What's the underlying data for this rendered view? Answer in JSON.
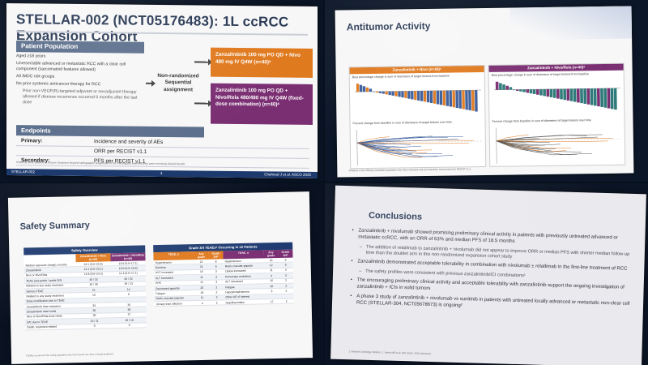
{
  "slide1": {
    "title": "STELLAR-002 (NCT05176483): 1L ccRCC Expansion Cohort",
    "population_header": "Patient Population",
    "population_items": [
      "Aged ≥18 years",
      "Unresectable advanced or metastatic RCC with a clear cell component (sarcomatoid features allowed)",
      "All IMDC risk groups",
      "No prior systemic anticancer therapy for RCC"
    ],
    "population_sub": "Prior non-VEGF(R)-targeted adjuvant or neoadjuvant therapy allowed if disease recurrence occurred 6 months after the last dose",
    "assignment": "Non-randomized Sequential assignment",
    "arm1": "Zanzalintinib 100 mg PO QD + Nivo 480 mg IV Q4W (n=40)ᵃ",
    "arm2": "Zanzalintinib 100 mg PO QD + Nivo/Rela 480/480 mg IV Q4W (fixed-dose combination) (n=40)ᵃ",
    "endpoints_header": "Endpoints",
    "primary_label": "Primary:",
    "primary_values": [
      "Incidence and severity of AEs",
      "ORR per RECIST v1.1"
    ],
    "secondary_label": "Secondary:",
    "secondary_value": "PFS per RECIST v1.1",
    "footnote": "ᵃPatients were allowed to receive treatment beyond radiographic progression if the investigator believed they were receiving clinical benefit.",
    "bar_left": "STELLAR-002",
    "bar_page": "4",
    "bar_right": "Chahoud J et al. ASCO 2025"
  },
  "slide2": {
    "title": "Antitumor Activity",
    "panel_left_head": "Zanzalintinib + Nivo (n=40)ᵃ",
    "panel_right_head": "Zanzalintinib + Nivo/Rela (n=40)ᵃ",
    "panel_sub1": "Best percentage change in sum of diameters of target lesions from baseline",
    "panel_sub2": "Percent change from baseline in sum of diameters of target lesions over time",
    "x_label": "Time, months",
    "footnote": "ᵃPatients in the efficacy evaluable population who had a baseline and post-baseline assessment per RECIST v1.1.",
    "bar_left": "STELLAR-002",
    "bar_page": "8",
    "bar_right": "Chahoud J et al. ASCO 2025"
  },
  "slide3": {
    "title": "Safety Summary",
    "left_head": "Safety Overview",
    "left_cols": [
      "Zanzalintinib + Nivo (n=40)",
      "Zanzalintinib + Nivo/Rela (n=40)"
    ],
    "left_rows": [
      [
        "Median exposure (range), months",
        "16.1 (0.6–24.5)",
        "13.0 (0.5–17.1)"
      ],
      [
        "Zanzalintinib",
        "14.1 (0.5–23.1)",
        "13.0 (0.5–16.5)"
      ],
      [
        "Nivo or Nivo/Rela",
        "15.8 (0.6–24.2)",
        "11.3 (0.6–17.1)"
      ],
      [
        "TEAE (any grade / grade 3/4)",
        "40 / 32",
        "40 / 32"
      ],
      [
        "Related to any study treatment",
        "39 / 30",
        "39 / 23"
      ],
      [
        "Serious TEAE",
        "21",
        "14"
      ],
      [
        "Related to any study treatment",
        "10",
        "6"
      ],
      [
        "Dose modification due to TEAE",
        "",
        ""
      ],
      [
        "Zanzalintinib dose reduction",
        "34",
        "34"
      ],
      [
        "Zanzalintinib dose holds",
        "36",
        "36"
      ],
      [
        "Nivo or Nivo/Rela dose holds",
        "30",
        "27"
      ],
      [
        "D/C due to TEAE",
        "13 / 11",
        "10 / 10"
      ],
      [
        "Death, treatment-related",
        "0",
        "0"
      ]
    ],
    "right_head": "Grade 3/4 TEAEsᵃ Occurring in ≥2 Patients",
    "right_cols": [
      "TEAE, n",
      "Any grade",
      "Grade 3/4ᵇ"
    ],
    "right_rows_left": [
      [
        "Hypertension",
        "21",
        "8"
      ],
      [
        "Diarrhea",
        "31",
        "6"
      ],
      [
        "AST increased",
        "15",
        "3"
      ],
      [
        "ALT increased",
        "11",
        "3"
      ],
      [
        "PPE",
        "11",
        "3"
      ],
      [
        "Decreased appetite",
        "20",
        "2"
      ],
      [
        "Fatigue",
        "19",
        "2"
      ],
      [
        "Rash, macular-papular",
        "11",
        "2"
      ],
      [
        "Urinary tract infection",
        "4",
        "2"
      ]
    ],
    "right_rows_right": [
      [
        "Hypertension",
        "16",
        "6"
      ],
      [
        "Rash, macular-papular",
        "12",
        "5"
      ],
      [
        "Lipase increased",
        "11",
        "4"
      ],
      [
        "Pulmonary embolism",
        "4",
        "3"
      ],
      [
        "ALT increased",
        "15",
        "2"
      ],
      [
        "Fatigue",
        "16",
        "2"
      ],
      [
        "Hypophosphatemia",
        "3",
        "2"
      ],
      [
        "Other AE of interest",
        "",
        ""
      ],
      [
        "Hypothyroidism",
        "17",
        "2"
      ]
    ],
    "footnote": "ᵃTEAEs occurred in the safety population who had at least one dose of study treatment.",
    "bar_left": "STELLAR-002",
    "bar_page": "10",
    "bar_right": "Chahoud J et al. ASCO 2025"
  },
  "slide4": {
    "title": "Conclusions",
    "bullets": [
      {
        "level": 1,
        "text": "Zanzalintinib + nivolumab showed promising preliminary clinical activity in patients with previously untreated advanced or metastatic ccRCC, with an ORR of 63% and median PFS of 18.5 months"
      },
      {
        "level": 2,
        "text": "The addition of relatlimab to zanzalintinib + nivolumab did not appear to improve ORR or median PFS with shorter median follow-up time than the doublet arm in this non-randomized expansion cohort study"
      },
      {
        "level": 1,
        "text": "Zanzalintinib demonstrated acceptable tolerability in combination with nivolumab ± relatlimab in the first-line treatment of RCC"
      },
      {
        "level": 2,
        "text": "The safety profiles were consistent with previous zanzalintinib/ICI combinations¹"
      },
      {
        "level": 1,
        "text": "The encouraging preliminary clinical activity and acceptable tolerability with zanzalintinib support the ongoing investigation of zanzalintinib + ICIs in solid tumors"
      },
      {
        "level": 1,
        "text": "A phase 3 study of zanzalintinib + nivolumab vs sunitinib in patients with untreated locally advanced or metastatic non-clear cell RCC (STELLAR-304, NCT05678673) is ongoing²"
      }
    ],
    "footnote": "1. Network Oncology Institute. 2. Jones ME et al. Ann Oncol. 2025 (abstract)."
  },
  "colors": {
    "navy": "#1f3b70",
    "orange": "#e07a1f",
    "purple": "#7b2f73",
    "slate": "#5c6f8c"
  }
}
